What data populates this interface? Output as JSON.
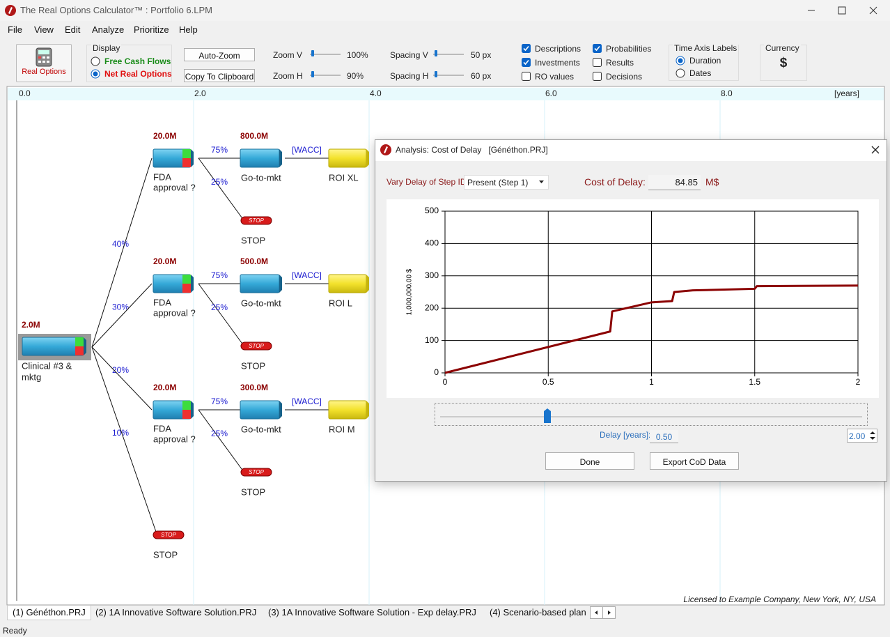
{
  "window": {
    "title": "The Real Options Calculator™ :  Portfolio 6.LPM"
  },
  "menu": [
    "File",
    "View",
    "Edit",
    "Analyze",
    "Prioritize",
    "Help"
  ],
  "toolbar": {
    "real_options_button": "Real Options",
    "display": {
      "title": "Display",
      "options": [
        {
          "label": "Free Cash Flows",
          "selected": false
        },
        {
          "label": "Net Real Options",
          "selected": true
        }
      ]
    },
    "buttons": [
      "Auto-Zoom",
      "Copy To Clipboard"
    ],
    "sliders": [
      {
        "label": "Zoom V",
        "value": "100%"
      },
      {
        "label": "Zoom H",
        "value": "90%"
      },
      {
        "label": "Spacing V",
        "value": "50 px"
      },
      {
        "label": "Spacing H",
        "value": "60 px"
      }
    ],
    "checkboxes": [
      {
        "label": "Descriptions",
        "checked": true
      },
      {
        "label": "Investments",
        "checked": true
      },
      {
        "label": "RO values",
        "checked": false
      },
      {
        "label": "Probabilities",
        "checked": true
      },
      {
        "label": "Results",
        "checked": false
      },
      {
        "label": "Decisions",
        "checked": false
      }
    ],
    "time_axis": {
      "title": "Time Axis Labels",
      "options": [
        {
          "label": "Duration",
          "selected": true
        },
        {
          "label": "Dates",
          "selected": false
        }
      ]
    },
    "currency": {
      "title": "Currency",
      "symbol": "$"
    }
  },
  "timeline": {
    "labels": [
      "0.0",
      "2.0",
      "4.0",
      "6.0",
      "8.0"
    ],
    "unit": "[years]"
  },
  "tree": {
    "root": {
      "value": "2.0M",
      "label": [
        "Clinical #3 &",
        "mktg"
      ]
    },
    "branches": [
      {
        "prob": "40%",
        "node": {
          "value": "20.0M",
          "label": [
            "FDA",
            "approval ?"
          ]
        },
        "success_prob": "75%",
        "fail_prob": "25%",
        "next": {
          "value": "800.0M",
          "label": "Go-to-mkt"
        },
        "rate": "[WACC]",
        "end": "ROI XL",
        "stop_badge": "STOP",
        "stop": "STOP"
      },
      {
        "prob": "30%",
        "node": {
          "value": "20.0M",
          "label": [
            "FDA",
            "approval ?"
          ]
        },
        "success_prob": "75%",
        "fail_prob": "25%",
        "next": {
          "value": "500.0M",
          "label": "Go-to-mkt"
        },
        "rate": "[WACC]",
        "end": "ROI L",
        "stop_badge": "STOP",
        "stop": "STOP"
      },
      {
        "prob": "20%",
        "node": {
          "value": "20.0M",
          "label": [
            "FDA",
            "approval ?"
          ]
        },
        "success_prob": "75%",
        "fail_prob": "25%",
        "next": {
          "value": "300.0M",
          "label": "Go-to-mkt"
        },
        "rate": "[WACC]",
        "end": "ROI M",
        "stop_badge": "STOP",
        "stop": "STOP"
      },
      {
        "prob": "10%",
        "stop_badge": "STOP",
        "stop": "STOP"
      }
    ]
  },
  "license": "Licensed to Example Company, New York, NY, USA",
  "tabs": [
    "(1) Généthon.PRJ",
    "(2) 1A Innovative Software Solution.PRJ",
    "(3) 1A Innovative Software Solution - Exp delay.PRJ",
    "(4) Scenario-based plan"
  ],
  "status": "Ready",
  "dialog": {
    "title": "Analysis: Cost of Delay   [Généthon.PRJ]",
    "vary_label": "Vary Delay of Step ID:",
    "vary_value": "Present (Step 1)",
    "cost_label": "Cost of Delay:",
    "cost_value": "84.85",
    "cost_unit": "M$",
    "delay_label": "Delay [years]:",
    "delay_value": "0.50",
    "delay_max": "2.00",
    "buttons": [
      "Done",
      "Export CoD Data"
    ]
  },
  "chart_data": {
    "type": "line",
    "y_label": "1,000,000.00 $",
    "x": [
      0,
      0.8,
      0.81,
      1.0,
      1.1,
      1.11,
      1.2,
      1.5,
      1.51,
      2.0
    ],
    "values": [
      0,
      128,
      190,
      218,
      222,
      250,
      255,
      260,
      268,
      270
    ],
    "color": "#8b0000",
    "xlim": [
      0,
      2
    ],
    "ylim": [
      0,
      500
    ],
    "xticks": [
      0,
      0.5,
      1,
      1.5,
      2
    ],
    "yticks": [
      0,
      100,
      200,
      300,
      400,
      500
    ],
    "grid": true
  }
}
